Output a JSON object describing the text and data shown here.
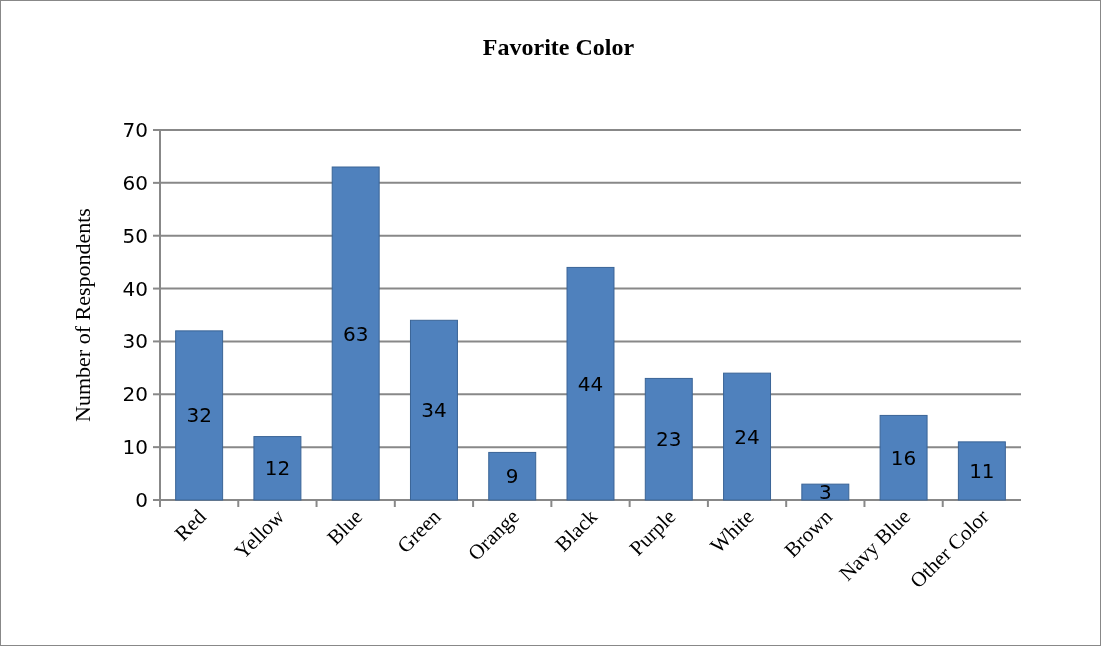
{
  "chart_data": {
    "type": "bar",
    "title": "Favorite Color",
    "ylabel": "Number of Respondents",
    "categories": [
      "Red",
      "Yellow",
      "Blue",
      "Green",
      "Orange",
      "Black",
      "Purple",
      "White",
      "Brown",
      "Navy Blue",
      "Other Color"
    ],
    "values": [
      32,
      12,
      63,
      34,
      9,
      44,
      23,
      24,
      3,
      16,
      11
    ],
    "color": "#4f81bd",
    "ylim": [
      0,
      70
    ],
    "yticks": [
      0,
      10,
      20,
      30,
      40,
      50,
      60,
      70
    ],
    "grid": "y",
    "data_labels": true
  }
}
